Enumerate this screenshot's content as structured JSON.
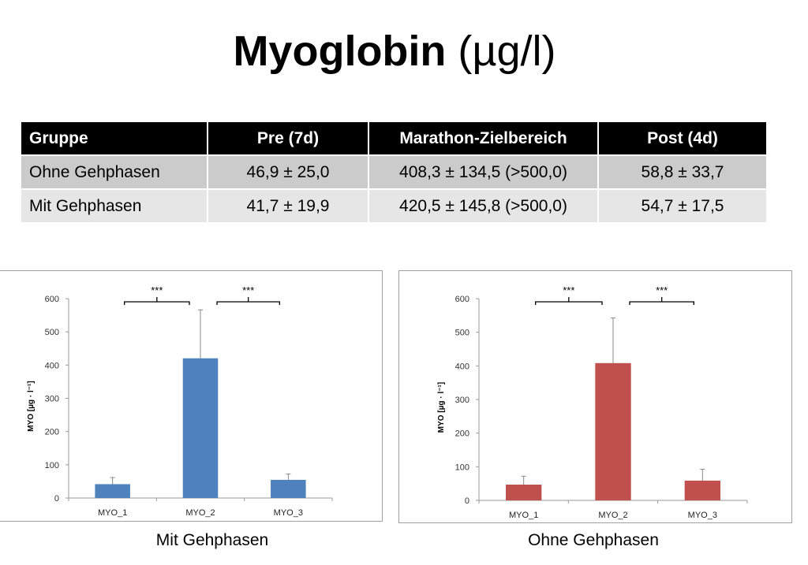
{
  "title": {
    "main": "Myoglobin",
    "unit": "(µg/l)"
  },
  "table": {
    "headers": [
      "Gruppe",
      "Pre (7d)",
      "Marathon-Zielbereich",
      "Post (4d)"
    ],
    "rows": [
      [
        "Ohne Gehphasen",
        "46,9 ± 25,0",
        "408,3 ± 134,5 (>500,0)",
        "58,8 ± 33,7"
      ],
      [
        "Mit Gehphasen",
        "41,7 ± 19,9",
        "420,5 ± 145,8 (>500,0)",
        "54,7 ± 17,5"
      ]
    ]
  },
  "captions": [
    "Mit Gehphasen",
    "Ohne Gehphasen"
  ],
  "chart_data": [
    {
      "type": "bar",
      "title": "Mit Gehphasen",
      "categories": [
        "MYO_1",
        "MYO_2",
        "MYO_3"
      ],
      "values": [
        41.7,
        420.5,
        54.7
      ],
      "errors": [
        19.9,
        145.8,
        17.5
      ],
      "ylabel": "MYO [µg · l⁻¹]",
      "ylim": [
        0,
        600
      ],
      "yticks": [
        0,
        100,
        200,
        300,
        400,
        500,
        600
      ],
      "color": "#4f81bd",
      "significance": [
        {
          "from": 0,
          "to": 1,
          "label": "***"
        },
        {
          "from": 1,
          "to": 2,
          "label": "***"
        }
      ]
    },
    {
      "type": "bar",
      "title": "Ohne Gehphasen",
      "categories": [
        "MYO_1",
        "MYO_2",
        "MYO_3"
      ],
      "values": [
        46.9,
        408.3,
        58.8
      ],
      "errors": [
        25.0,
        134.5,
        33.7
      ],
      "ylabel": "MYO [µg · l⁻¹]",
      "ylim": [
        0,
        600
      ],
      "yticks": [
        0,
        100,
        200,
        300,
        400,
        500,
        600
      ],
      "color": "#c0504d",
      "significance": [
        {
          "from": 0,
          "to": 1,
          "label": "***"
        },
        {
          "from": 1,
          "to": 2,
          "label": "***"
        }
      ]
    }
  ]
}
